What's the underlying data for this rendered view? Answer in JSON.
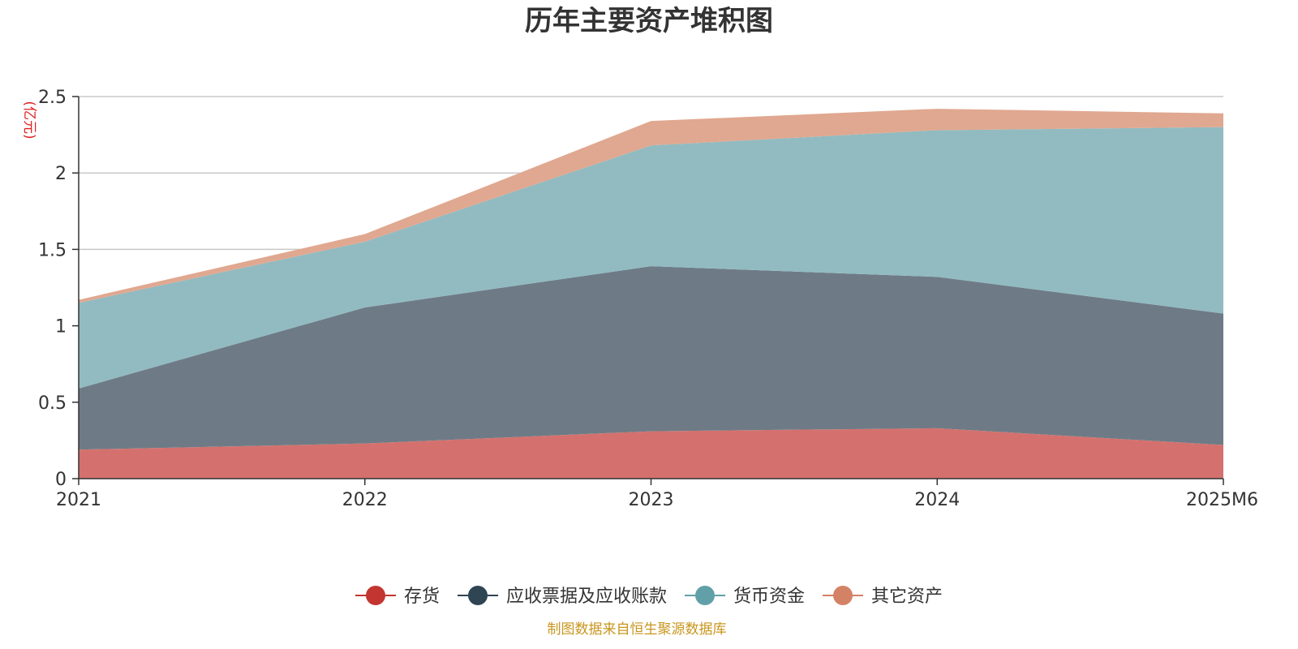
{
  "chart_data": {
    "type": "area",
    "stacked": true,
    "title": "历年主要资产堆积图",
    "unit_label": "(亿元)",
    "x": [
      "2021",
      "2022",
      "2023",
      "2024",
      "2025M6"
    ],
    "ylim": [
      0,
      2.5
    ],
    "yticks": [
      "0",
      "0.5",
      "1",
      "1.5",
      "2",
      "2.5"
    ],
    "ytick_values": [
      0,
      0.5,
      1,
      1.5,
      2,
      2.5
    ],
    "grid": true,
    "legend_position": "bottom",
    "series": [
      {
        "name": "存货",
        "color": "#c23531",
        "fill": "#d4716e",
        "values": [
          0.19,
          0.23,
          0.31,
          0.33,
          0.22
        ]
      },
      {
        "name": "应收票据及应收账款",
        "color": "#2f4554",
        "fill": "#6e7b86",
        "values": [
          0.4,
          0.89,
          1.08,
          0.99,
          0.86
        ]
      },
      {
        "name": "货币资金",
        "color": "#61a0a8",
        "fill": "#91bbc1",
        "values": [
          0.56,
          0.43,
          0.79,
          0.96,
          1.22
        ]
      },
      {
        "name": "其它资产",
        "color": "#d48265",
        "fill": "#e0a890",
        "values": [
          0.02,
          0.05,
          0.16,
          0.14,
          0.09
        ]
      }
    ]
  },
  "source": "制图数据来自恒生聚源数据库"
}
